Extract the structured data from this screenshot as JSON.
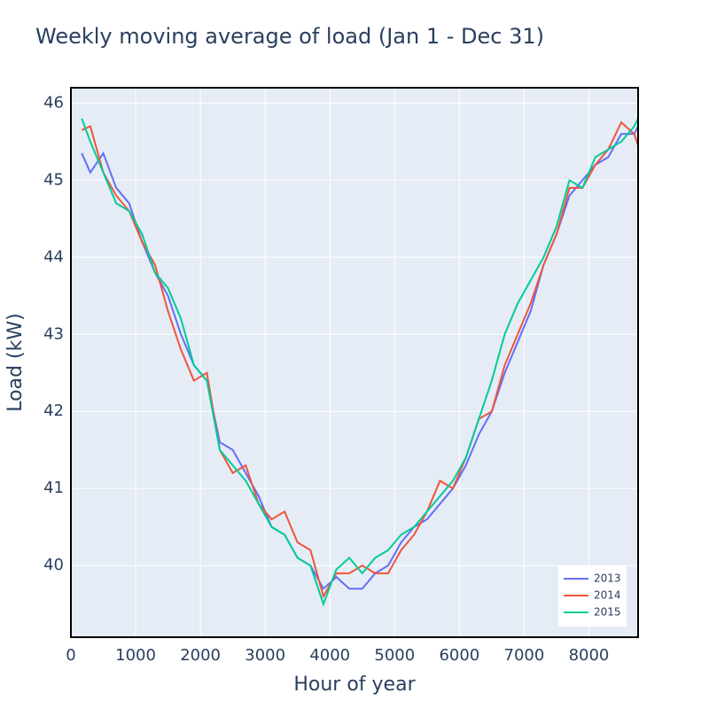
{
  "chart_data": {
    "type": "line",
    "title": "Weekly moving average of load (Jan 1 - Dec 31)",
    "x_label": "Hour of year",
    "y_label": "Load (kW)",
    "x": [
      168,
      300,
      500,
      700,
      900,
      1100,
      1300,
      1500,
      1700,
      1900,
      2100,
      2300,
      2500,
      2700,
      2900,
      3100,
      3300,
      3500,
      3700,
      3900,
      4100,
      4300,
      4500,
      4700,
      4900,
      5100,
      5300,
      5500,
      5700,
      5900,
      6100,
      6300,
      6500,
      6700,
      6900,
      7100,
      7300,
      7500,
      7700,
      7900,
      8100,
      8300,
      8500,
      8700,
      8760
    ],
    "series": [
      {
        "name": "2013",
        "color": "#636efa",
        "values": [
          45.35,
          45.1,
          45.35,
          44.9,
          44.7,
          44.2,
          43.8,
          43.5,
          43.0,
          42.6,
          42.4,
          41.6,
          41.5,
          41.2,
          40.9,
          40.5,
          40.4,
          40.1,
          40.0,
          39.7,
          39.85,
          39.7,
          39.7,
          39.9,
          40.0,
          40.3,
          40.5,
          40.6,
          40.8,
          41.0,
          41.3,
          41.7,
          42.0,
          42.5,
          42.9,
          43.3,
          43.9,
          44.3,
          44.8,
          45.0,
          45.2,
          45.3,
          45.6,
          45.6,
          45.7
        ]
      },
      {
        "name": "2014",
        "color": "#ef553b",
        "values": [
          45.65,
          45.7,
          45.1,
          44.8,
          44.6,
          44.2,
          43.9,
          43.3,
          42.8,
          42.4,
          42.5,
          41.5,
          41.2,
          41.3,
          40.8,
          40.6,
          40.7,
          40.3,
          40.2,
          39.6,
          39.9,
          39.9,
          40.0,
          39.9,
          39.9,
          40.2,
          40.4,
          40.7,
          41.1,
          41.0,
          41.4,
          41.9,
          42.0,
          42.6,
          43.0,
          43.4,
          43.9,
          44.3,
          44.9,
          44.9,
          45.2,
          45.4,
          45.75,
          45.6,
          45.45
        ]
      },
      {
        "name": "2015",
        "color": "#00cc96",
        "values": [
          45.8,
          45.5,
          45.1,
          44.7,
          44.6,
          44.3,
          43.8,
          43.6,
          43.2,
          42.6,
          42.4,
          41.5,
          41.3,
          41.1,
          40.8,
          40.5,
          40.4,
          40.1,
          40.0,
          39.5,
          39.95,
          40.1,
          39.9,
          40.1,
          40.2,
          40.4,
          40.5,
          40.7,
          40.9,
          41.1,
          41.4,
          41.9,
          42.4,
          43.0,
          43.4,
          43.7,
          44.0,
          44.4,
          45.0,
          44.9,
          45.3,
          45.4,
          45.5,
          45.7,
          45.8
        ]
      }
    ],
    "xlim": [
      0,
      8760
    ],
    "ylim": [
      39.07,
      46.2
    ],
    "xticks": [
      0,
      1000,
      2000,
      3000,
      4000,
      5000,
      6000,
      7000,
      8000
    ],
    "yticks": [
      40,
      41,
      42,
      43,
      44,
      45,
      46
    ],
    "grid": true,
    "legend_position": "bottom-right"
  }
}
